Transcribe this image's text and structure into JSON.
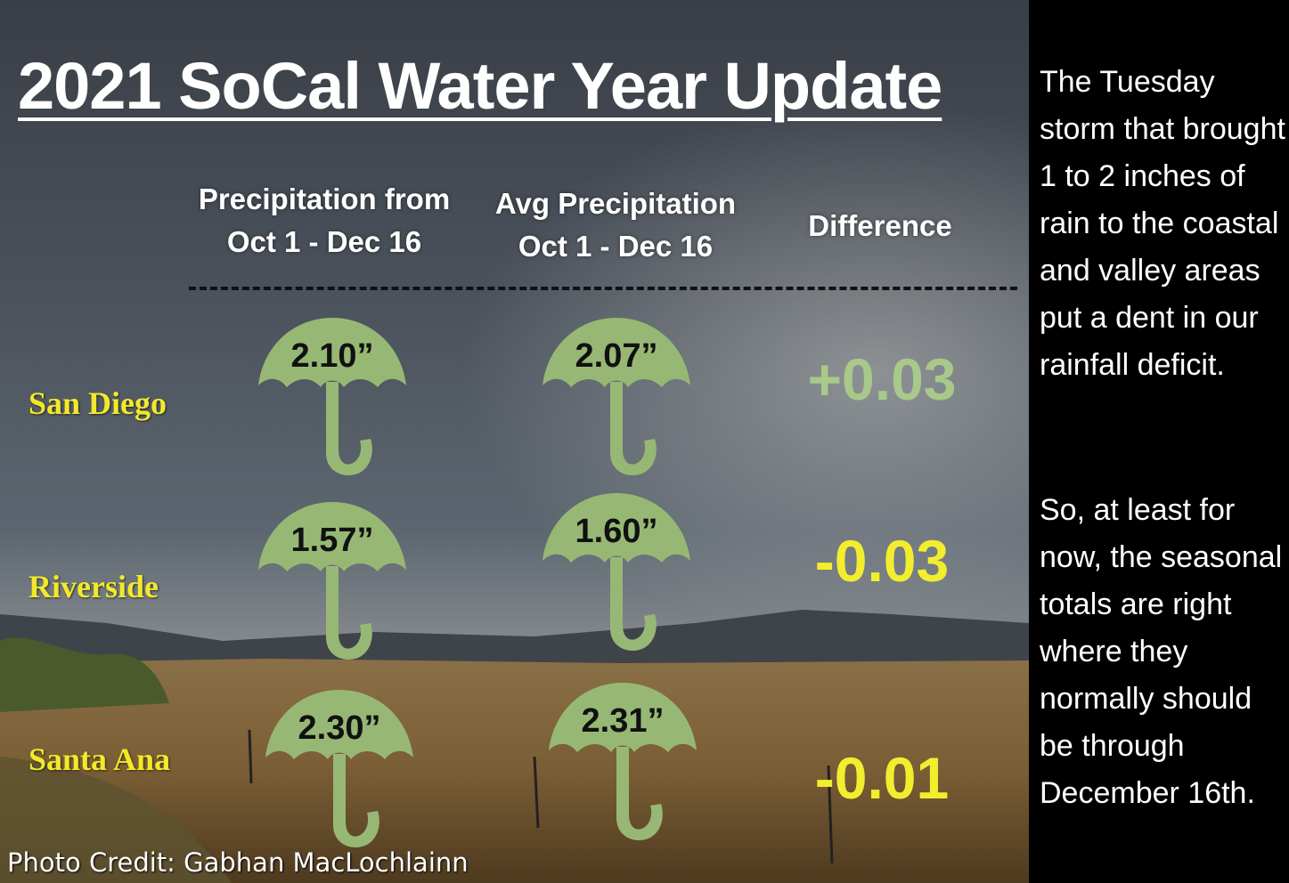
{
  "title": "2021 SoCal Water Year Update",
  "columns": {
    "observed_line1": "Precipitation from",
    "observed_line2": "Oct 1 -  Dec 16",
    "average_line1": "Avg Precipitation",
    "average_line2": "Oct 1 -  Dec 16",
    "difference": "Difference"
  },
  "rows": [
    {
      "city": "San Diego",
      "observed": "2.10”",
      "average": "2.07”",
      "difference": "+0.03",
      "difference_color": "#a8c98a"
    },
    {
      "city": "Riverside",
      "observed": "1.57”",
      "average": "1.60”",
      "difference": "-0.03",
      "difference_color": "#f2ee2e"
    },
    {
      "city": "Santa Ana",
      "observed": "2.30”",
      "average": "2.31”",
      "difference": "-0.01",
      "difference_color": "#f2ee2e"
    }
  ],
  "umbrella_icon": "umbrella-icon",
  "umbrella_color": "#97b874",
  "city_color": "#f2e92a",
  "side": {
    "paragraph1": "The Tuesday storm that brought 1 to 2 inches of rain to the coastal and valley areas put a dent in our rainfall deficit.",
    "paragraph2": "So, at least for now, the seasonal totals are right where they normally should be through December 16th."
  },
  "photo_credit": "Photo Credit: Gabhan MacLochlainn"
}
